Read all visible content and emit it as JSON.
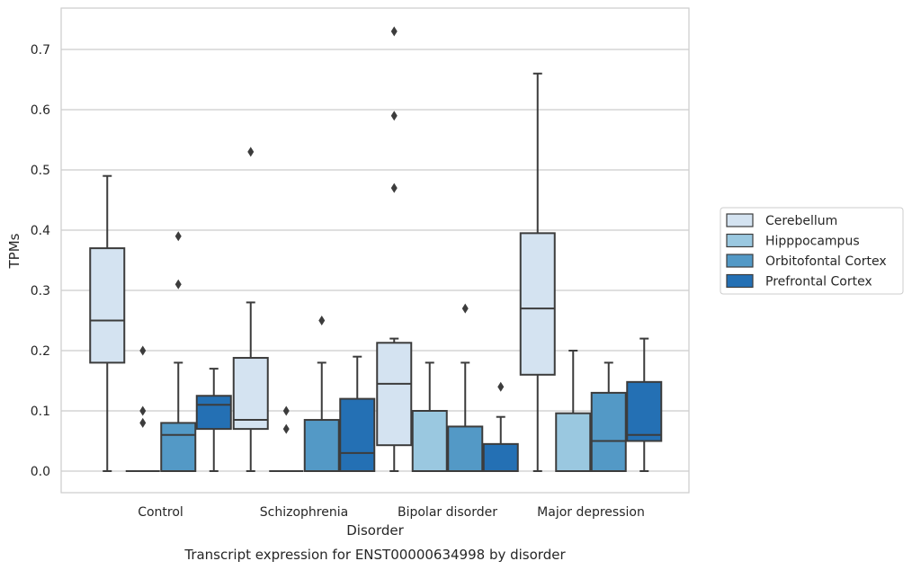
{
  "chart_data": {
    "type": "box",
    "xlabel": "Disorder",
    "ylabel": "TPMs",
    "caption": "Transcript expression for ENST00000634998 by disorder",
    "categories": [
      "Control",
      "Schizophrenia",
      "Bipolar disorder",
      "Major depression"
    ],
    "ylim": [
      -0.035,
      0.77
    ],
    "yticks": [
      "0.0",
      "0.1",
      "0.2",
      "0.3",
      "0.4",
      "0.5",
      "0.6",
      "0.7"
    ],
    "grid": "horizontal",
    "legend_position": "right",
    "series": [
      {
        "name": "Cerebellum",
        "color": "#d4e3f1",
        "boxes": [
          {
            "whisker_low": 0.0,
            "q1": 0.18,
            "median": 0.25,
            "q3": 0.37,
            "whisker_high": 0.49,
            "outliers": []
          },
          {
            "whisker_low": 0.0,
            "q1": 0.07,
            "median": 0.085,
            "q3": 0.188,
            "whisker_high": 0.28,
            "outliers": [
              0.53
            ]
          },
          {
            "whisker_low": 0.0,
            "q1": 0.043,
            "median": 0.145,
            "q3": 0.213,
            "whisker_high": 0.22,
            "outliers": [
              0.47,
              0.59,
              0.73
            ]
          },
          {
            "whisker_low": 0.0,
            "q1": 0.16,
            "median": 0.27,
            "q3": 0.395,
            "whisker_high": 0.66,
            "outliers": []
          }
        ]
      },
      {
        "name": "Hipppocampus",
        "color": "#9ac8e0",
        "boxes": [
          {
            "whisker_low": 0.0,
            "q1": 0.0,
            "median": 0.0,
            "q3": 0.0,
            "whisker_high": 0.0,
            "outliers": [
              0.08,
              0.1,
              0.2
            ]
          },
          {
            "whisker_low": 0.0,
            "q1": 0.0,
            "median": 0.0,
            "q3": 0.0,
            "whisker_high": 0.0,
            "outliers": [
              0.07,
              0.1
            ]
          },
          {
            "whisker_low": 0.0,
            "q1": 0.0,
            "median": 0.0,
            "q3": 0.1,
            "whisker_high": 0.18,
            "outliers": []
          },
          {
            "whisker_low": 0.0,
            "q1": 0.0,
            "median": 0.0,
            "q3": 0.096,
            "whisker_high": 0.2,
            "outliers": []
          }
        ]
      },
      {
        "name": "Orbitofontal Cortex",
        "color": "#5399c6",
        "boxes": [
          {
            "whisker_low": 0.0,
            "q1": 0.0,
            "median": 0.06,
            "q3": 0.08,
            "whisker_high": 0.18,
            "outliers": [
              0.31,
              0.39
            ]
          },
          {
            "whisker_low": 0.0,
            "q1": 0.0,
            "median": 0.0,
            "q3": 0.085,
            "whisker_high": 0.18,
            "outliers": [
              0.25
            ]
          },
          {
            "whisker_low": 0.0,
            "q1": 0.0,
            "median": 0.0,
            "q3": 0.074,
            "whisker_high": 0.18,
            "outliers": [
              0.27
            ]
          },
          {
            "whisker_low": 0.0,
            "q1": 0.0,
            "median": 0.05,
            "q3": 0.13,
            "whisker_high": 0.18,
            "outliers": []
          }
        ]
      },
      {
        "name": "Prefrontal Cortex",
        "color": "#2470b4",
        "boxes": [
          {
            "whisker_low": 0.0,
            "q1": 0.07,
            "median": 0.11,
            "q3": 0.125,
            "whisker_high": 0.17,
            "outliers": []
          },
          {
            "whisker_low": 0.0,
            "q1": 0.0,
            "median": 0.03,
            "q3": 0.12,
            "whisker_high": 0.19,
            "outliers": []
          },
          {
            "whisker_low": 0.0,
            "q1": 0.0,
            "median": 0.0,
            "q3": 0.045,
            "whisker_high": 0.09,
            "outliers": [
              0.14
            ]
          },
          {
            "whisker_low": 0.0,
            "q1": 0.05,
            "median": 0.06,
            "q3": 0.148,
            "whisker_high": 0.22,
            "outliers": []
          }
        ]
      }
    ]
  }
}
